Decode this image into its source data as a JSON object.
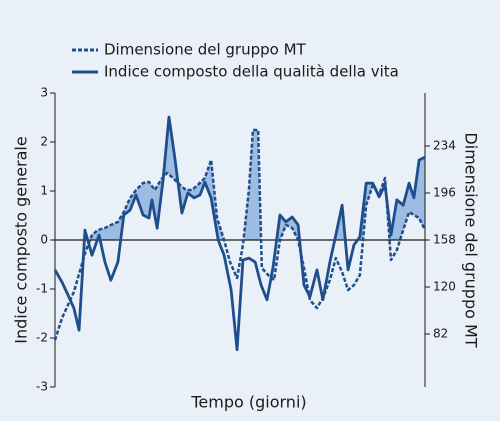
{
  "chart_data": {
    "type": "line",
    "xlabel": "Tempo (giorni)",
    "ylabel": "Indice composto generale",
    "y2label": "Dimensione del gruppo MT",
    "xlim": [
      0,
      100
    ],
    "ylim": [
      -3,
      3
    ],
    "yticks": [
      -3,
      -2,
      -1,
      0,
      1,
      2,
      3
    ],
    "y2lim": [
      39.2,
      276.8
    ],
    "y2ticks": [
      82,
      120,
      158,
      196,
      234
    ],
    "fill_between": true,
    "series": [
      {
        "name": "Dimensione del gruppo MT",
        "color": "#1f4e8c",
        "style": "dashed",
        "axis": "y2",
        "x": [
          0,
          1.9,
          3.5,
          5.1,
          6.8,
          8.4,
          10,
          11.6,
          13.5,
          15.1,
          17,
          18.6,
          20.3,
          21.9,
          23.8,
          25.4,
          27,
          28.6,
          30.3,
          31.9,
          33.8,
          35.4,
          37,
          38.6,
          40.5,
          42.2,
          43.8,
          45.7,
          47.3,
          49.2,
          50.8,
          52.4,
          53.5,
          54.9,
          55.9,
          57.6,
          59.2,
          60.8,
          62.4,
          64.1,
          65.7,
          67.3,
          68.9,
          70.8,
          72.4,
          74.3,
          75.9,
          77.6,
          79.2,
          80.8,
          82.4,
          84.1,
          85.9,
          87.6,
          89.2,
          90.8,
          92.4,
          94.1,
          95.7,
          97,
          98.4,
          100
        ],
        "values": [
          77.1,
          94.9,
          105.4,
          116,
          133.7,
          149.9,
          162,
          166.1,
          167.7,
          170.1,
          172.6,
          180.6,
          192,
          198.4,
          204.1,
          204.9,
          198.4,
          206.5,
          212.2,
          208.1,
          202.5,
          198.4,
          198.4,
          202.5,
          208.1,
          222.7,
          175.8,
          158,
          140.2,
          127.3,
          154,
          198.4,
          246.9,
          246.9,
          135.4,
          129.7,
          125.7,
          158,
          170.1,
          167.7,
          158,
          135.4,
          109.5,
          103,
          111.1,
          125.7,
          143.4,
          132.1,
          117.6,
          121.6,
          129.7,
          186.3,
          202.5,
          194.4,
          208.1,
          141.8,
          149.9,
          166.1,
          180.6,
          178.2,
          175.8,
          166.1
        ]
      },
      {
        "name": "Indice composto della qualità della vita",
        "color": "#1f4e8c",
        "style": "solid",
        "axis": "y",
        "x": [
          0,
          1.9,
          3.5,
          5.1,
          6.5,
          8.1,
          10,
          11.9,
          13.5,
          15.1,
          17,
          18.6,
          20.3,
          21.9,
          23.8,
          25.4,
          26.2,
          27.6,
          29.2,
          30.8,
          32.4,
          34.3,
          35.9,
          37.6,
          39.2,
          40.5,
          42.2,
          44.1,
          45.7,
          47.6,
          49.2,
          50.8,
          52.4,
          54.1,
          55.7,
          57.3,
          58.9,
          60.8,
          62.4,
          64.1,
          65.7,
          67.3,
          68.9,
          70.8,
          72.4,
          74.3,
          75.9,
          77.6,
          79.2,
          80.8,
          82.4,
          84.1,
          85.9,
          87.6,
          89.2,
          90.8,
          92.4,
          94.1,
          95.7,
          97,
          98.4,
          100
        ],
        "values": [
          -0.61,
          -0.86,
          -1.12,
          -1.39,
          -1.84,
          0.2,
          -0.31,
          0.1,
          -0.45,
          -0.82,
          -0.45,
          0.51,
          0.61,
          0.92,
          0.51,
          0.45,
          0.82,
          0.24,
          1.22,
          2.51,
          1.67,
          0.55,
          0.96,
          0.86,
          0.92,
          1.18,
          0.86,
          0,
          -0.31,
          -1.02,
          -2.24,
          -0.41,
          -0.37,
          -0.45,
          -0.92,
          -1.22,
          -0.57,
          0.51,
          0.37,
          0.47,
          0.31,
          -0.92,
          -1.16,
          -0.61,
          -1.22,
          -0.45,
          0.1,
          0.71,
          -0.61,
          -0.1,
          0.06,
          1.16,
          1.16,
          0.88,
          1.12,
          0.1,
          0.82,
          0.71,
          1.16,
          0.86,
          1.63,
          1.69
        ]
      }
    ]
  }
}
